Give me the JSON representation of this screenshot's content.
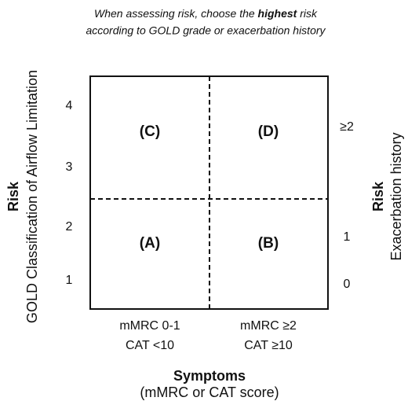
{
  "title": {
    "line1": {
      "before": "When assessing risk, choose the",
      "emphasis": "highest",
      "after": "risk"
    },
    "line2": "according to GOLD grade or exacerbation history"
  },
  "quadrants": [
    "(C)",
    "(D)",
    "(A)",
    "(B)"
  ],
  "left_scale": [
    "4",
    "3",
    "2",
    "1"
  ],
  "right_scale": [
    "≥2",
    "1",
    "0"
  ],
  "left_axis": {
    "title": "Risk",
    "subtitle": "GOLD Classification of Airflow Limitation"
  },
  "right_axis": {
    "title": "Risk",
    "subtitle": "Exacerbation history"
  },
  "bottom_scale": [
    {
      "line1": "mMRC 0-1",
      "line2": "CAT <10"
    },
    {
      "line1": "mMRC ≥2",
      "line2": "CAT ≥10"
    }
  ],
  "bottom_axis": {
    "title": "Symptoms",
    "subtitle": "(mMRC or CAT score)"
  }
}
